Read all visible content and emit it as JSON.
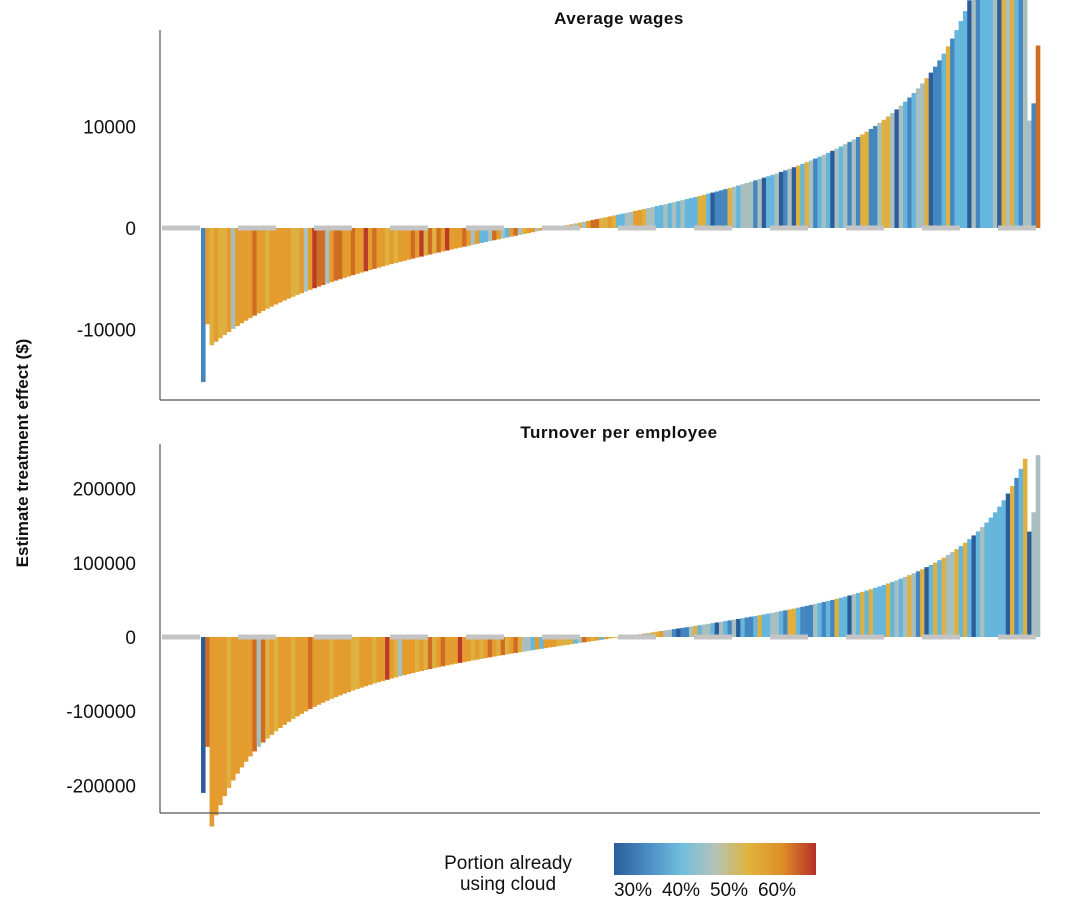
{
  "y_axis_label": "Estimate treatment effect ($)",
  "legend": {
    "title_line1": "Portion already",
    "title_line2": "using cloud",
    "ticks": [
      "30%",
      "40%",
      "50%",
      "60%"
    ],
    "colors": [
      "#2b5c9c",
      "#4a8cc4",
      "#6fbede",
      "#b3c3b8",
      "#e0b43c",
      "#de8e28",
      "#b52f28"
    ]
  },
  "chart_data": [
    {
      "type": "bar",
      "title": "Average wages",
      "ylim": [
        -17000,
        19500
      ],
      "yticks": [
        10000,
        0,
        -10000
      ],
      "ytick_labels": [
        "10000",
        "0",
        "-10000"
      ],
      "n_bars": 196,
      "first_bar_value": -15200,
      "last_bar_value": 18000,
      "sorted_ascending": true,
      "zero_line_color": "#c4c4c4",
      "grid": false
    },
    {
      "type": "bar",
      "title": "Turnover per employee",
      "ylim": [
        -235000,
        262000
      ],
      "yticks": [
        200000,
        100000,
        0,
        -100000,
        -200000
      ],
      "ytick_labels": [
        "200000",
        "100000",
        "0",
        "-100000",
        "-200000"
      ],
      "n_bars": 196,
      "first_bar_value": -210000,
      "last_bar_value": 245000,
      "sorted_ascending": true,
      "zero_line_color": "#c4c4c4",
      "grid": false
    }
  ]
}
